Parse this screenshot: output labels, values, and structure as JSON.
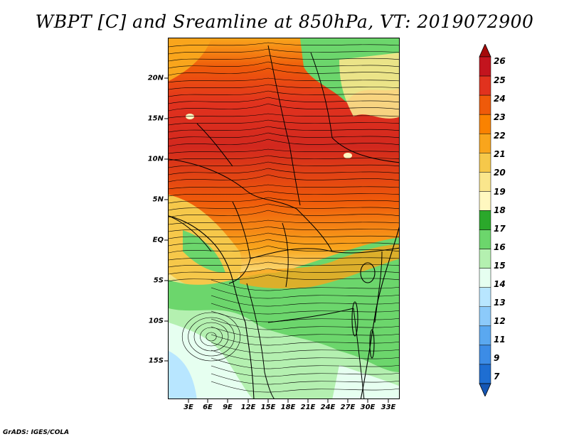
{
  "title": "WBPT [C] and Sreamline at 850hPa, VT: 2019072900",
  "credit": "GrADS: IGES/COLA",
  "map": {
    "lat_labels": [
      "20N",
      "15N",
      "10N",
      "5N",
      "EQ",
      "5S",
      "10S",
      "15S"
    ],
    "lon_labels": [
      "3E",
      "6E",
      "9E",
      "12E",
      "15E",
      "18E",
      "21E",
      "24E",
      "27E",
      "30E",
      "33E"
    ]
  },
  "colorbar": {
    "labels": [
      "26",
      "25",
      "24",
      "23",
      "22",
      "21",
      "20",
      "19",
      "18",
      "17",
      "16",
      "15",
      "14",
      "13",
      "12",
      "11",
      "9",
      "7"
    ],
    "colors": [
      "#a50a0a",
      "#c3141e",
      "#e1321e",
      "#ef5a0a",
      "#fa8200",
      "#f9a51c",
      "#f6c84a",
      "#fae68c",
      "#fff8c0",
      "#2ba82b",
      "#6cd66c",
      "#b4f0b0",
      "#e6fff0",
      "#b8e6ff",
      "#8ccafa",
      "#5aa8f0",
      "#3c8ce6",
      "#1e6ed2",
      "#1456b4"
    ]
  }
}
